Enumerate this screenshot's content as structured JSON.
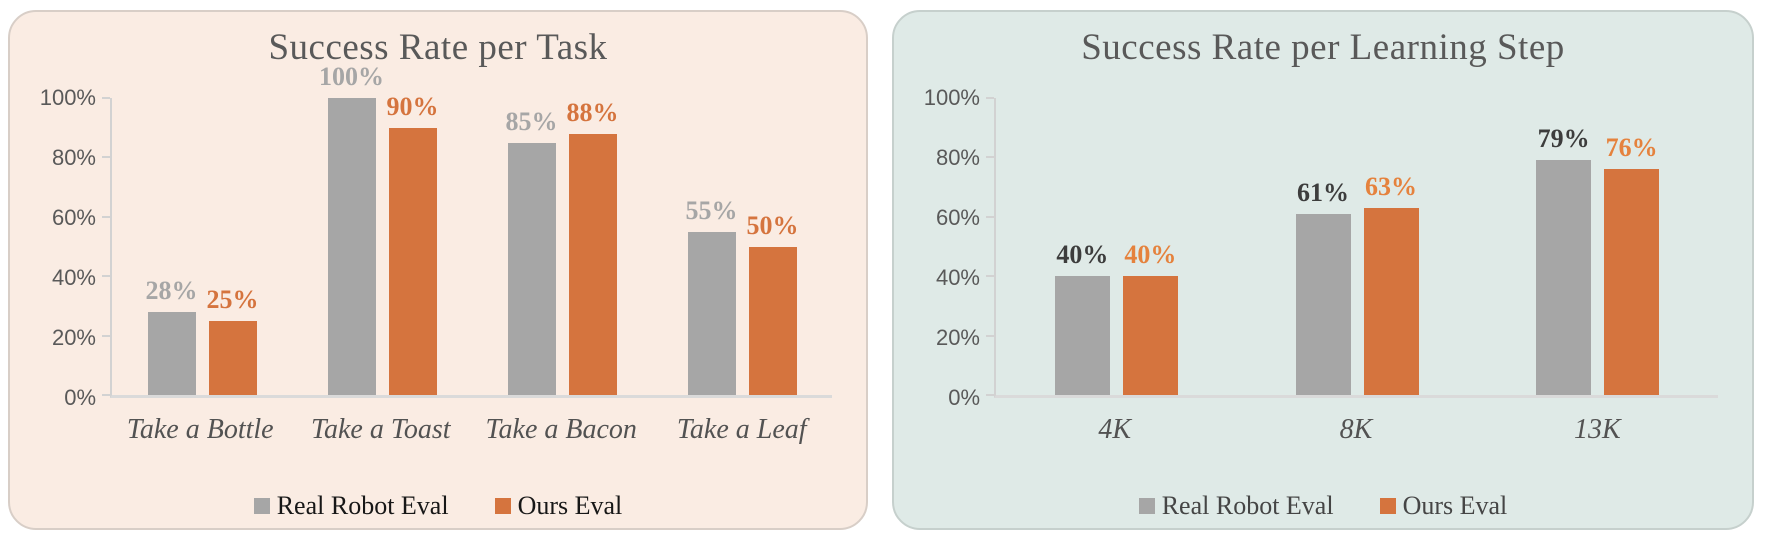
{
  "chart_data": [
    {
      "type": "bar",
      "title": "Success Rate per Task",
      "categories": [
        "Take a Bottle",
        "Take a Toast",
        "Take a Bacon",
        "Take a Leaf"
      ],
      "series": [
        {
          "name": "Real Robot Eval",
          "values": [
            28,
            100,
            85,
            55
          ],
          "labels": [
            "28%",
            "100%",
            "85%",
            "55%"
          ],
          "bar_color": "#a6a6a6",
          "label_color": "#a6a6a6"
        },
        {
          "name": "Ours Eval",
          "values": [
            25,
            90,
            88,
            50
          ],
          "labels": [
            "25%",
            "90%",
            "88%",
            "50%"
          ],
          "bar_color": "#d5743e",
          "label_color": "#d5743e"
        }
      ],
      "y_tick_labels": [
        "100%",
        "80%",
        "60%",
        "40%",
        "20%",
        "0%"
      ],
      "ylim": [
        0,
        100
      ],
      "grid": false,
      "legend_position": "bottom",
      "panel_background": "#faece3"
    },
    {
      "type": "bar",
      "title": "Success Rate per Learning Step",
      "categories": [
        "4K",
        "8K",
        "13K"
      ],
      "series": [
        {
          "name": "Real Robot Eval",
          "values": [
            40,
            61,
            79
          ],
          "labels": [
            "40%",
            "61%",
            "79%"
          ],
          "bar_color": "#a6a6a6",
          "label_color": "#3d3d3d"
        },
        {
          "name": "Ours Eval",
          "values": [
            40,
            63,
            76
          ],
          "labels": [
            "40%",
            "63%",
            "76%"
          ],
          "bar_color": "#d5743e",
          "label_color": "#e5823d"
        }
      ],
      "y_tick_labels": [
        "100%",
        "80%",
        "60%",
        "40%",
        "20%",
        "0%"
      ],
      "ylim": [
        0,
        100
      ],
      "grid": false,
      "legend_position": "bottom",
      "panel_background": "#dfeae7"
    }
  ]
}
